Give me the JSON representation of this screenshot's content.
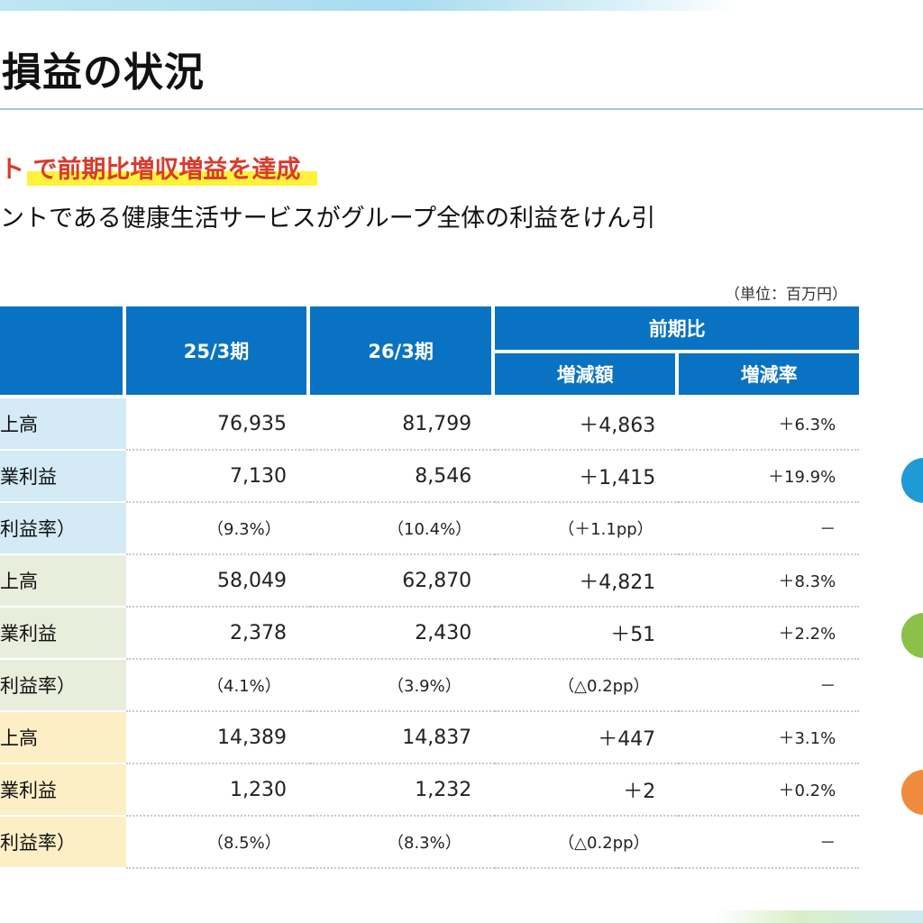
{
  "title": "損益の状況",
  "headline": "ト で前期比増収増益を達成",
  "subline": "ントである健康生活サービスがグループ全体の利益をけん引",
  "unit": "（単位：百万円）",
  "table": {
    "headers": {
      "col_25": "25/3期",
      "col_26": "26/3期",
      "yoy_group": "前期比",
      "diff": "増減額",
      "rate": "増減率"
    },
    "segments": [
      {
        "rows": [
          {
            "label": "上高",
            "v25": "76,935",
            "v26": "81,799",
            "diff": "＋4,863",
            "rate": "＋6.3%"
          },
          {
            "label": "業利益",
            "v25": "7,130",
            "v26": "8,546",
            "diff": "＋1,415",
            "rate": "＋19.9%"
          },
          {
            "label": "利益率）",
            "v25": "（9.3%）",
            "v26": "（10.4%）",
            "diff": "（＋1.1pp）",
            "rate": "－"
          }
        ]
      },
      {
        "rows": [
          {
            "label": "上高",
            "v25": "58,049",
            "v26": "62,870",
            "diff": "＋4,821",
            "rate": "＋8.3%"
          },
          {
            "label": "業利益",
            "v25": "2,378",
            "v26": "2,430",
            "diff": "＋51",
            "rate": "＋2.2%"
          },
          {
            "label": "利益率）",
            "v25": "（4.1%）",
            "v26": "（3.9%）",
            "diff": "（△0.2pp）",
            "rate": "－"
          }
        ]
      },
      {
        "rows": [
          {
            "label": "上高",
            "v25": "14,389",
            "v26": "14,837",
            "diff": "＋447",
            "rate": "＋3.1%"
          },
          {
            "label": "業利益",
            "v25": "1,230",
            "v26": "1,232",
            "diff": "＋2",
            "rate": "＋0.2%"
          },
          {
            "label": "利益率）",
            "v25": "（8.5%）",
            "v26": "（8.3%）",
            "diff": "（△0.2pp）",
            "rate": "－"
          }
        ]
      }
    ]
  },
  "colors": {
    "header_blue": "#0a72c2",
    "segment_1": "#d4ebf5",
    "segment_2": "#e9eedc",
    "segment_3": "#fcefc6",
    "dot_blue": "#1f9ad6",
    "dot_green": "#8cc04a",
    "dot_orange": "#f08a3c",
    "headline_red": "#d83b2c",
    "highlight_yellow": "#fff23a"
  }
}
